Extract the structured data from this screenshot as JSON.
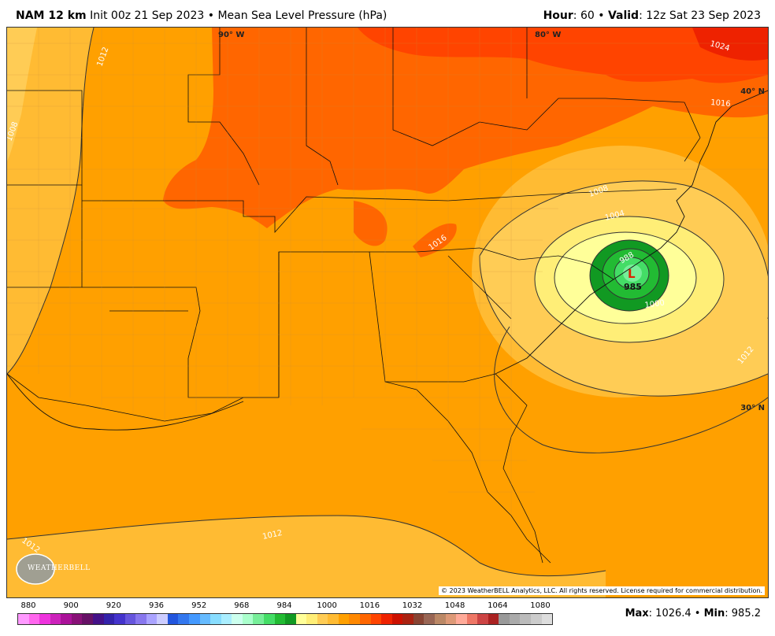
{
  "header": {
    "model": "NAM 12 km",
    "init": "Init 00z 21 Sep 2023",
    "bullet": "•",
    "field": "Mean Sea Level Pressure (hPa)",
    "hour_label": "Hour",
    "hour_value": ": 60",
    "valid_label": "Valid",
    "valid_value": ": 12z Sat 23 Sep 2023"
  },
  "map": {
    "longitude_labels": [
      "90° W",
      "80° W"
    ],
    "latitude_labels": [
      "40° N",
      "30° N"
    ],
    "contour_labels": [
      "1012",
      "1008",
      "1008",
      "1004",
      "1016",
      "1016",
      "1012",
      "1012",
      "1012",
      "1024",
      "1016",
      "1000",
      "988"
    ],
    "low_center": {
      "symbol": "L",
      "value": "985"
    },
    "logo_text": "WEATHERBELL",
    "copyright": "© 2023 WeatherBELL Analytics, LLC. All rights reserved. License required for commercial distribution."
  },
  "legend": {
    "tick_labels": [
      "880",
      "900",
      "920",
      "936",
      "952",
      "968",
      "984",
      "1000",
      "1016",
      "1032",
      "1048",
      "1064",
      "1080"
    ],
    "colors": [
      "#ff99ff",
      "#ff66ee",
      "#ee33dd",
      "#cc22bb",
      "#aa1199",
      "#881177",
      "#661166",
      "#441188",
      "#3322aa",
      "#4433cc",
      "#6655dd",
      "#8877ee",
      "#aaa3ff",
      "#ccccff",
      "#2255dd",
      "#3377ee",
      "#4499ff",
      "#66bbff",
      "#88ddff",
      "#aaeeff",
      "#ccffee",
      "#aaffcc",
      "#77ee99",
      "#44dd66",
      "#22bb33",
      "#119922",
      "#ffff99",
      "#ffee77",
      "#ffcc55",
      "#ffbb33",
      "#ffa000",
      "#ff8800",
      "#ff6600",
      "#ff4400",
      "#ee2200",
      "#cc1100",
      "#aa2211",
      "#884433",
      "#996655",
      "#bb8866",
      "#dd9977",
      "#ffaa99",
      "#ee7766",
      "#cc4444",
      "#aa2222",
      "#999999",
      "#aaaaaa",
      "#bbbbbb",
      "#cccccc",
      "#dddddd"
    ]
  },
  "stats": {
    "max_label": "Max",
    "max_value": ": 1026.4",
    "separator": " • ",
    "min_label": "Min",
    "min_value": ": 985.2"
  }
}
